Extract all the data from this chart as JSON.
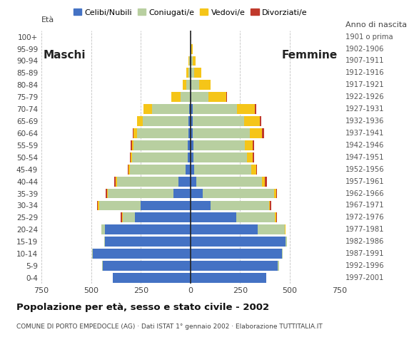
{
  "age_groups": [
    "0-4",
    "5-9",
    "10-14",
    "15-19",
    "20-24",
    "25-29",
    "30-34",
    "35-39",
    "40-44",
    "45-49",
    "50-54",
    "55-59",
    "60-64",
    "65-69",
    "70-74",
    "75-79",
    "80-84",
    "85-89",
    "90-94",
    "95-99",
    "100+"
  ],
  "birth_years": [
    "1997-2001",
    "1992-1996",
    "1987-1991",
    "1982-1986",
    "1977-1981",
    "1972-1976",
    "1967-1971",
    "1962-1966",
    "1957-1961",
    "1952-1956",
    "1947-1951",
    "1942-1946",
    "1937-1941",
    "1932-1936",
    "1927-1931",
    "1922-1926",
    "1917-1921",
    "1912-1916",
    "1907-1911",
    "1902-1906",
    "1901 o prima"
  ],
  "male": {
    "celibe": [
      390,
      440,
      490,
      430,
      430,
      280,
      250,
      85,
      60,
      25,
      15,
      15,
      10,
      10,
      5,
      0,
      0,
      0,
      0,
      0,
      0
    ],
    "coniugato": [
      0,
      5,
      5,
      5,
      20,
      60,
      210,
      330,
      310,
      280,
      280,
      270,
      260,
      230,
      190,
      50,
      20,
      10,
      5,
      0,
      0
    ],
    "vedovo": [
      0,
      0,
      0,
      0,
      0,
      5,
      5,
      5,
      5,
      5,
      5,
      10,
      15,
      30,
      40,
      45,
      20,
      10,
      5,
      0,
      0
    ],
    "divorziato": [
      0,
      0,
      0,
      0,
      0,
      5,
      5,
      5,
      10,
      5,
      5,
      5,
      5,
      0,
      0,
      0,
      0,
      0,
      0,
      0,
      0
    ]
  },
  "female": {
    "nubile": [
      380,
      440,
      460,
      480,
      340,
      230,
      100,
      60,
      30,
      20,
      15,
      15,
      10,
      10,
      10,
      5,
      5,
      5,
      5,
      5,
      0
    ],
    "coniugata": [
      0,
      5,
      5,
      5,
      135,
      195,
      295,
      360,
      330,
      285,
      270,
      260,
      290,
      260,
      225,
      85,
      40,
      15,
      5,
      0,
      0
    ],
    "vedova": [
      0,
      0,
      0,
      0,
      5,
      5,
      5,
      10,
      15,
      25,
      30,
      40,
      60,
      80,
      90,
      90,
      55,
      35,
      15,
      5,
      0
    ],
    "divorziata": [
      0,
      0,
      0,
      0,
      0,
      5,
      5,
      5,
      10,
      5,
      5,
      5,
      10,
      5,
      5,
      5,
      0,
      0,
      0,
      0,
      0
    ]
  },
  "colors": {
    "celibe": "#4472c4",
    "coniugato": "#b8cfa0",
    "vedovo": "#f5c518",
    "divorziato": "#c0392b"
  },
  "legend_labels": [
    "Celibi/Nubili",
    "Coniugati/e",
    "Vedovi/e",
    "Divorziati/e"
  ],
  "title": "Popolazione per età, sesso e stato civile - 2002",
  "subtitle": "COMUNE DI PORTO EMPEDOCLE (AG) · Dati ISTAT 1° gennaio 2002 · Elaborazione TUTTITALIA.IT",
  "label_maschi": "Maschi",
  "label_femmine": "Femmine",
  "label_eta": "Età",
  "label_anno": "Anno di nascita",
  "xlim": 750,
  "xticks": [
    -750,
    -500,
    -250,
    0,
    250,
    500,
    750
  ],
  "xtick_labels": [
    "750",
    "500",
    "250",
    "0",
    "250",
    "500",
    "750"
  ],
  "background_color": "#ffffff",
  "grid_color": "#999999",
  "bar_height": 0.82
}
